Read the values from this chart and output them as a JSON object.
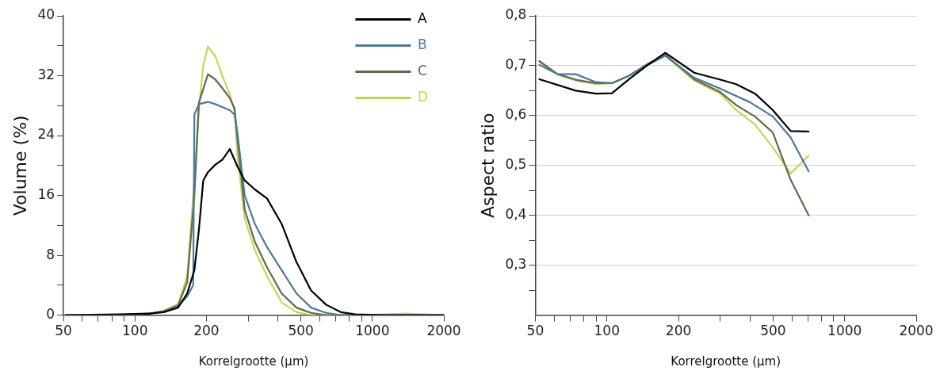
{
  "chart_data": [
    {
      "type": "line",
      "xlabel": "Korrelgrootte (μm)",
      "ylabel": "Volume (%)",
      "log": "x",
      "legend": "top right",
      "marker": "none",
      "line_style": "solid",
      "grid": false,
      "xlim": [
        50,
        2000
      ],
      "xticks": [
        50,
        {
          "value": 60,
          "label": null
        },
        {
          "value": 70,
          "label": null
        },
        {
          "value": 80,
          "label": null
        },
        {
          "value": 90,
          "label": null
        },
        100,
        200,
        {
          "value": 300,
          "label": null
        },
        {
          "value": 400,
          "label": null
        },
        500,
        {
          "value": 600,
          "label": null
        },
        {
          "value": 700,
          "label": null
        },
        {
          "value": 800,
          "label": null
        },
        {
          "value": 900,
          "label": null
        },
        1000,
        2000
      ],
      "ylim": [
        0,
        40
      ],
      "yticks": [
        0,
        {
          "value": 4,
          "label": null
        },
        8,
        {
          "value": 12,
          "label": null
        },
        16,
        {
          "value": 20,
          "label": null
        },
        24,
        {
          "value": 28,
          "label": null
        },
        32,
        {
          "value": 36,
          "label": null
        },
        40
      ],
      "x": [
        51,
        86,
        115,
        132,
        152,
        166,
        178,
        186,
        194,
        203,
        218,
        234,
        251,
        270,
        290,
        320,
        360,
        415,
        479,
        552,
        638,
        736,
        849,
        1129,
        2000
      ],
      "series": [
        {
          "name": "A",
          "color": "#000000",
          "values": [
            0,
            0.1,
            0.2,
            0.4,
            1.0,
            2.9,
            6.0,
            11.4,
            18,
            19.1,
            20.1,
            20.8,
            22.2,
            19.9,
            18,
            16.8,
            15.6,
            12.2,
            7.1,
            3.3,
            1.4,
            0.4,
            0.1,
            0,
            0
          ]
        },
        {
          "name": "B",
          "color": "#4a7a9b",
          "x": [
            51,
            86,
            115,
            132,
            152,
            166,
            176,
            178,
            186,
            203,
            218,
            234,
            251,
            263,
            270,
            290,
            320,
            360,
            415,
            479,
            552,
            638,
            736,
            849,
            1129,
            2000
          ],
          "values": [
            0,
            0,
            0.2,
            0.5,
            1.2,
            2.5,
            4,
            26.8,
            28.2,
            28.5,
            28.2,
            27.8,
            27.4,
            26.8,
            24.5,
            16,
            12.2,
            9.1,
            6.0,
            2.9,
            1.0,
            0.3,
            0,
            0,
            0,
            0
          ]
        },
        {
          "name": "C",
          "color": "#5c6b4e",
          "x": [
            51,
            86,
            115,
            132,
            152,
            166,
            178,
            186,
            203,
            218,
            234,
            251,
            263,
            270,
            290,
            320,
            360,
            415,
            479,
            552,
            638,
            736,
            849,
            1129,
            2000
          ],
          "values": [
            0,
            0,
            0.2,
            0.5,
            1.3,
            4.4,
            16,
            28.4,
            32.2,
            31.5,
            30.3,
            29,
            27.6,
            23.7,
            14.1,
            9.8,
            6.4,
            2.9,
            1.0,
            0.3,
            0,
            0,
            0,
            0,
            0
          ]
        },
        {
          "name": "D",
          "color": "#c8d456",
          "x": [
            51,
            86,
            115,
            132,
            152,
            166,
            178,
            186,
            194,
            203,
            218,
            234,
            251,
            263,
            270,
            290,
            320,
            360,
            415,
            479,
            552,
            638,
            736,
            849,
            1400,
            2000
          ],
          "values": [
            0,
            0,
            0.2,
            0.6,
            1.5,
            5.2,
            18,
            27.6,
            33.4,
            35.9,
            34.6,
            31.9,
            29.5,
            27.2,
            21.4,
            12.9,
            8.7,
            5.2,
            1.7,
            0.4,
            0,
            0,
            0,
            0,
            0.2,
            0
          ]
        }
      ]
    },
    {
      "type": "line",
      "xlabel": "Korrelgrootte (μm)",
      "ylabel": "Aspect ratio",
      "log": "x",
      "marker": "none",
      "line_style": "solid",
      "grid": "y",
      "xlim": [
        50,
        2000
      ],
      "xticks": [
        50,
        {
          "value": 60,
          "label": null
        },
        {
          "value": 70,
          "label": null
        },
        {
          "value": 80,
          "label": null
        },
        {
          "value": 90,
          "label": null
        },
        100,
        200,
        {
          "value": 300,
          "label": null
        },
        {
          "value": 400,
          "label": null
        },
        500,
        {
          "value": 600,
          "label": null
        },
        {
          "value": 700,
          "label": null
        },
        {
          "value": 800,
          "label": null
        },
        {
          "value": 900,
          "label": null
        },
        1000,
        2000
      ],
      "ylim": [
        0.2,
        0.8
      ],
      "yticks": [
        {
          "value": 0.25,
          "label": null
        },
        {
          "value": 0.3,
          "label": "0,3"
        },
        {
          "value": 0.35,
          "label": null
        },
        {
          "value": 0.4,
          "label": "0,4"
        },
        {
          "value": 0.45,
          "label": null
        },
        {
          "value": 0.5,
          "label": "0,5"
        },
        {
          "value": 0.55,
          "label": null
        },
        {
          "value": 0.6,
          "label": "0,6"
        },
        {
          "value": 0.65,
          "label": null
        },
        {
          "value": 0.7,
          "label": "0,7"
        },
        {
          "value": 0.75,
          "label": null
        },
        {
          "value": 0.8,
          "label": "0,8"
        }
      ],
      "series": [
        {
          "color": "#000000",
          "x": [
            52,
            74,
            90,
            105,
            124,
            149,
            176,
            233,
            300,
            350,
            420,
            499,
            593,
            706
          ],
          "values": [
            0.673,
            0.65,
            0.644,
            0.645,
            0.673,
            0.702,
            0.726,
            0.686,
            0.672,
            0.663,
            0.644,
            0.611,
            0.569,
            0.568
          ]
        },
        {
          "color": "#4a7a9b",
          "x": [
            52,
            62,
            74,
            90,
            105,
            124,
            149,
            176,
            233,
            300,
            399,
            499,
            593,
            706
          ],
          "values": [
            0.702,
            0.683,
            0.683,
            0.667,
            0.665,
            0.68,
            0.702,
            0.72,
            0.676,
            0.654,
            0.627,
            0.598,
            0.556,
            0.488
          ]
        },
        {
          "color": "#5c6b4e",
          "x": [
            52,
            62,
            74,
            90,
            105,
            124,
            149,
            176,
            233,
            300,
            350,
            420,
            499,
            593,
            706
          ],
          "values": [
            0.709,
            0.683,
            0.672,
            0.665,
            0.665,
            0.68,
            0.704,
            0.722,
            0.673,
            0.647,
            0.621,
            0.598,
            0.566,
            0.471,
            0.4
          ]
        },
        {
          "color": "#c8d456",
          "x": [
            52,
            62,
            74,
            90,
            105,
            124,
            149,
            176,
            233,
            300,
            350,
            420,
            499,
            593,
            706
          ],
          "values": [
            0.709,
            0.683,
            0.67,
            0.663,
            0.665,
            0.68,
            0.704,
            0.72,
            0.67,
            0.644,
            0.611,
            0.582,
            0.536,
            0.484,
            0.52
          ]
        }
      ]
    }
  ]
}
